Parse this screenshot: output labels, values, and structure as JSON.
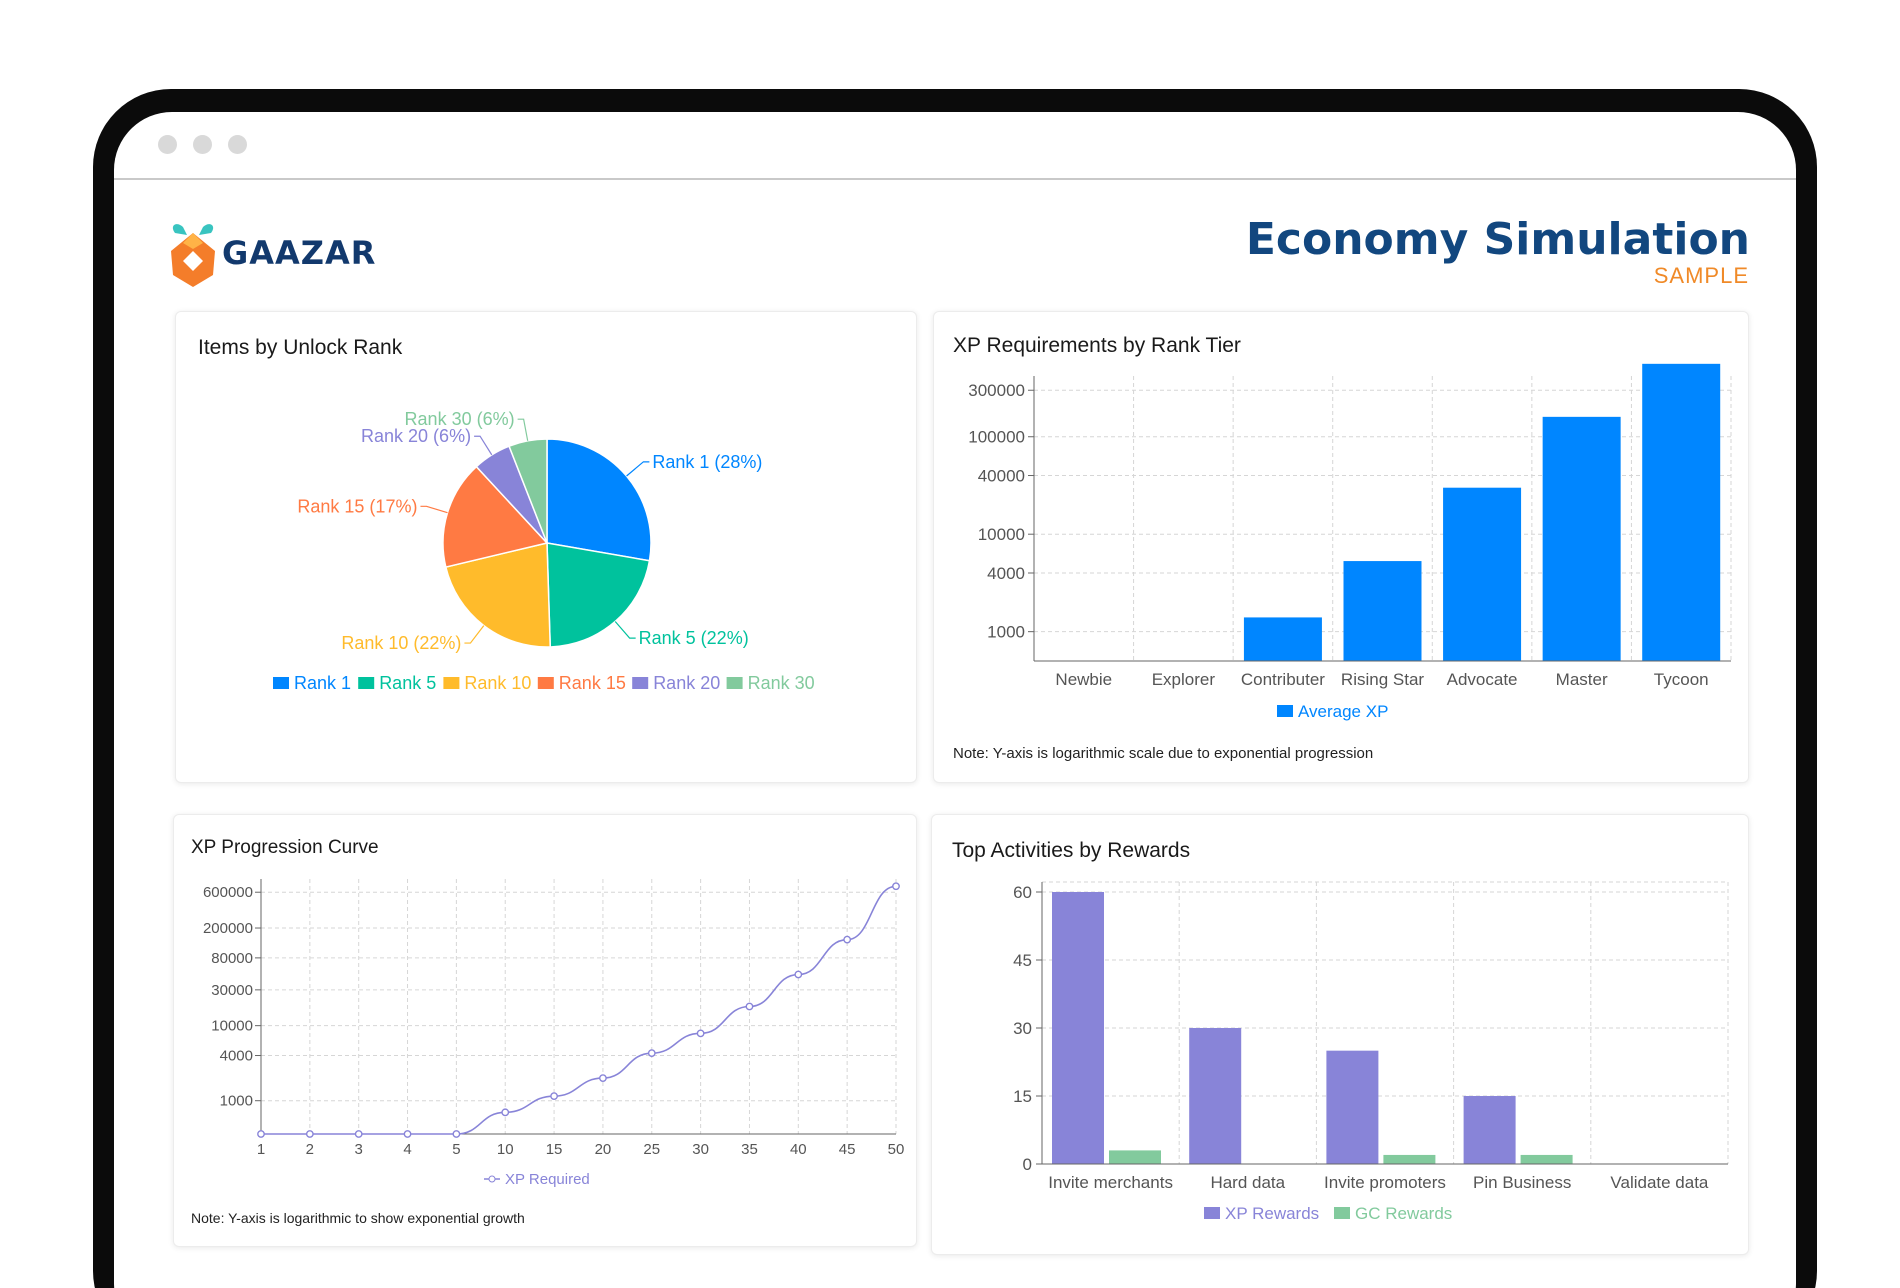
{
  "window": {
    "dots": 3
  },
  "brand": {
    "name": "GAAZAR"
  },
  "header": {
    "title": "Economy Simulation",
    "subtitle": "SAMPLE"
  },
  "colors": {
    "blue": "#0086ff",
    "teal": "#00c29d",
    "yellow": "#ffbb2b",
    "orange": "#ff7a43",
    "purple": "#8884d8",
    "green": "#82ca9d",
    "title_blue": "#12477f",
    "accent_orange": "#f08a28"
  },
  "chart_data": [
    {
      "id": "items_by_unlock_rank",
      "type": "pie",
      "title": "Items by Unlock Rank",
      "slices": [
        {
          "name": "Rank 1",
          "value": 28,
          "label": "Rank 1 (28%)",
          "color": "#0086ff"
        },
        {
          "name": "Rank 5",
          "value": 22,
          "label": "Rank 5 (22%)",
          "color": "#00c29d"
        },
        {
          "name": "Rank 10",
          "value": 22,
          "label": "Rank 10 (22%)",
          "color": "#ffbb2b"
        },
        {
          "name": "Rank 15",
          "value": 17,
          "label": "Rank 15 (17%)",
          "color": "#ff7a43"
        },
        {
          "name": "Rank 20",
          "value": 6,
          "label": "Rank 20 (6%)",
          "color": "#8884d8"
        },
        {
          "name": "Rank 30",
          "value": 6,
          "label": "Rank 30 (6%)",
          "color": "#82ca9d"
        }
      ],
      "legend": "bottom"
    },
    {
      "id": "xp_by_rank_tier",
      "type": "bar",
      "title": "XP Requirements by Rank Tier",
      "categories": [
        "Newbie",
        "Explorer",
        "Contributer",
        "Rising Star",
        "Advocate",
        "Master",
        "Tycoon"
      ],
      "series": [
        {
          "name": "Average XP",
          "color": "#0086ff",
          "values": [
            0,
            350,
            1400,
            5300,
            30000,
            160000,
            560000
          ]
        }
      ],
      "yscale": "log",
      "yticks": [
        1000,
        4000,
        10000,
        40000,
        100000,
        300000
      ],
      "ytick_labels": [
        "1000",
        "4000",
        "10000",
        "40000",
        "100000",
        "300000"
      ],
      "note": "Note: Y-axis is logarithmic scale due to exponential progression",
      "legend": "bottom"
    },
    {
      "id": "xp_progression_curve",
      "type": "line",
      "title": "XP Progression Curve",
      "x": [
        "1",
        "2",
        "3",
        "4",
        "5",
        "10",
        "15",
        "20",
        "25",
        "30",
        "35",
        "40",
        "45",
        "50"
      ],
      "series": [
        {
          "name": "XP Required",
          "color": "#8884d8",
          "values": [
            0,
            100,
            180,
            260,
            320,
            700,
            1150,
            2000,
            4300,
            7900,
            18000,
            48000,
            140000,
            720000
          ]
        }
      ],
      "yscale": "log",
      "yticks": [
        1000,
        4000,
        10000,
        30000,
        80000,
        200000,
        600000
      ],
      "ytick_labels": [
        "1000",
        "4000",
        "10000",
        "30000",
        "80000",
        "200000",
        "600000"
      ],
      "note": "Note: Y-axis is logarithmic to show exponential growth",
      "legend": "bottom"
    },
    {
      "id": "top_activities_by_rewards",
      "type": "bar",
      "title": "Top Activities by Rewards",
      "categories": [
        "Invite merchants",
        "Hard data",
        "Invite promoters",
        "Pin Business",
        "Validate data"
      ],
      "series": [
        {
          "name": "XP Rewards",
          "color": "#8884d8",
          "values": [
            60,
            30,
            25,
            15,
            0
          ]
        },
        {
          "name": "GC Rewards",
          "color": "#82ca9d",
          "values": [
            3,
            0,
            2,
            2,
            0
          ]
        }
      ],
      "ylim": [
        0,
        60
      ],
      "yticks": [
        0,
        15,
        30,
        45,
        60
      ],
      "ytick_labels": [
        "0",
        "15",
        "30",
        "45",
        "60"
      ],
      "legend": "bottom"
    }
  ]
}
